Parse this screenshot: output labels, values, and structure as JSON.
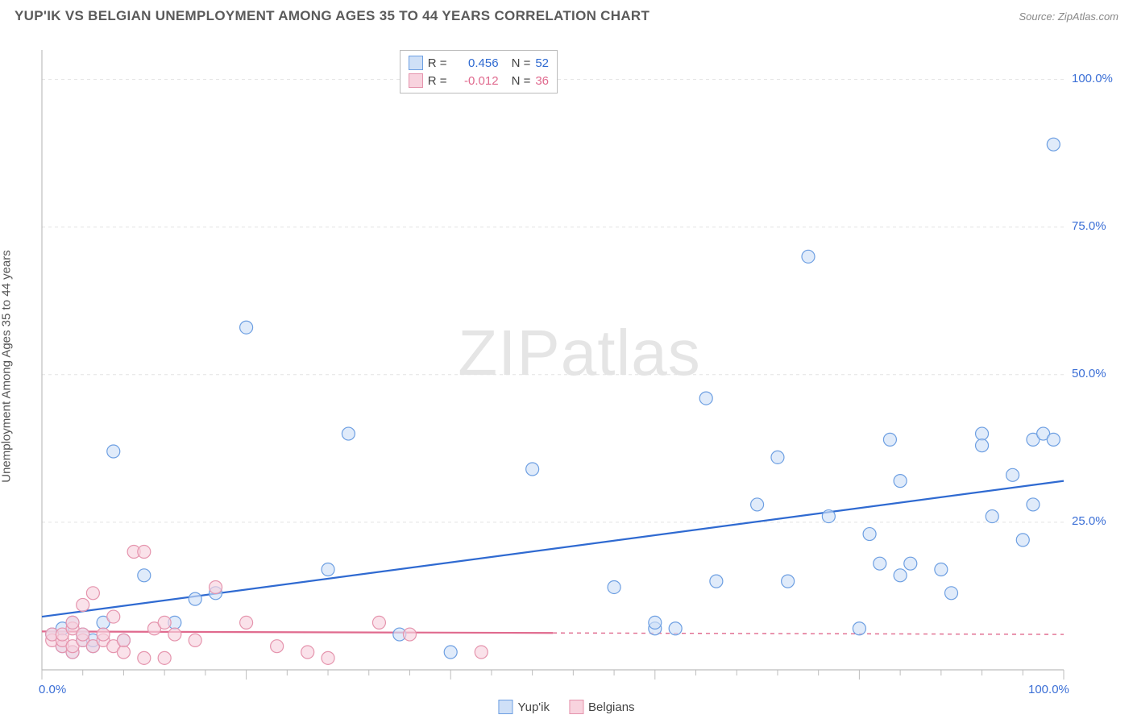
{
  "title": "YUP'IK VS BELGIAN UNEMPLOYMENT AMONG AGES 35 TO 44 YEARS CORRELATION CHART",
  "source": "Source: ZipAtlas.com",
  "y_axis_label": "Unemployment Among Ages 35 to 44 years",
  "watermark_a": "ZIP",
  "watermark_b": "atlas",
  "chart": {
    "type": "scatter",
    "xlim": [
      0,
      100
    ],
    "ylim": [
      0,
      105
    ],
    "x_ticks_major": [
      0,
      20,
      40,
      60,
      80,
      100
    ],
    "x_ticks_minor_step": 4,
    "y_grid": [
      25,
      50,
      75,
      100
    ],
    "x_labels": [
      {
        "v": 0,
        "t": "0.0%"
      },
      {
        "v": 100,
        "t": "100.0%"
      }
    ],
    "y_labels": [
      {
        "v": 25,
        "t": "25.0%"
      },
      {
        "v": 50,
        "t": "50.0%"
      },
      {
        "v": 75,
        "t": "75.0%"
      },
      {
        "v": 100,
        "t": "100.0%"
      }
    ],
    "background_color": "#ffffff",
    "grid_color": "#e3e3e3",
    "axis_color": "#bdbdbd",
    "marker_radius": 8,
    "marker_stroke_width": 1.2,
    "trend_line_width": 2.2,
    "axis_label_color": "#3b6fd6",
    "series": [
      {
        "name": "Yup'ik",
        "fill": "#cfe0f7",
        "stroke": "#6d9fe2",
        "line_stroke": "#2f6ad1",
        "r_label": "R =",
        "r_value": "0.456",
        "n_label": "N =",
        "n_value": "52",
        "trend": {
          "x1": 0,
          "y1": 9,
          "x2": 100,
          "y2": 32,
          "solid_until": 100
        },
        "points": [
          [
            1,
            6
          ],
          [
            2,
            4
          ],
          [
            2,
            7
          ],
          [
            3,
            3
          ],
          [
            3,
            8
          ],
          [
            4,
            5
          ],
          [
            4,
            6
          ],
          [
            5,
            4
          ],
          [
            5,
            5
          ],
          [
            6,
            8
          ],
          [
            7,
            37
          ],
          [
            8,
            5
          ],
          [
            10,
            16
          ],
          [
            13,
            8
          ],
          [
            15,
            12
          ],
          [
            17,
            13
          ],
          [
            20,
            58
          ],
          [
            28,
            17
          ],
          [
            30,
            40
          ],
          [
            35,
            6
          ],
          [
            40,
            3
          ],
          [
            48,
            34
          ],
          [
            56,
            14
          ],
          [
            60,
            7
          ],
          [
            60,
            8
          ],
          [
            62,
            7
          ],
          [
            65,
            46
          ],
          [
            66,
            15
          ],
          [
            70,
            28
          ],
          [
            72,
            36
          ],
          [
            73,
            15
          ],
          [
            75,
            70
          ],
          [
            77,
            26
          ],
          [
            80,
            7
          ],
          [
            81,
            23
          ],
          [
            82,
            18
          ],
          [
            83,
            39
          ],
          [
            84,
            16
          ],
          [
            84,
            32
          ],
          [
            85,
            18
          ],
          [
            88,
            17
          ],
          [
            89,
            13
          ],
          [
            92,
            40
          ],
          [
            92,
            38
          ],
          [
            93,
            26
          ],
          [
            95,
            33
          ],
          [
            96,
            22
          ],
          [
            97,
            39
          ],
          [
            97,
            28
          ],
          [
            98,
            40
          ],
          [
            99,
            89
          ],
          [
            99,
            39
          ]
        ]
      },
      {
        "name": "Belgians",
        "fill": "#f8d3de",
        "stroke": "#e594ad",
        "line_stroke": "#e06a8e",
        "r_label": "R =",
        "r_value": "-0.012",
        "n_label": "N =",
        "n_value": "36",
        "trend": {
          "x1": 0,
          "y1": 6.5,
          "x2": 100,
          "y2": 6,
          "solid_until": 50
        },
        "points": [
          [
            1,
            5
          ],
          [
            1,
            6
          ],
          [
            2,
            4
          ],
          [
            2,
            5
          ],
          [
            2,
            6
          ],
          [
            3,
            3
          ],
          [
            3,
            4
          ],
          [
            3,
            7
          ],
          [
            3,
            8
          ],
          [
            4,
            5
          ],
          [
            4,
            6
          ],
          [
            4,
            11
          ],
          [
            5,
            4
          ],
          [
            5,
            13
          ],
          [
            6,
            5
          ],
          [
            6,
            6
          ],
          [
            7,
            4
          ],
          [
            7,
            9
          ],
          [
            8,
            3
          ],
          [
            8,
            5
          ],
          [
            9,
            20
          ],
          [
            10,
            20
          ],
          [
            10,
            2
          ],
          [
            11,
            7
          ],
          [
            12,
            8
          ],
          [
            12,
            2
          ],
          [
            13,
            6
          ],
          [
            15,
            5
          ],
          [
            17,
            14
          ],
          [
            20,
            8
          ],
          [
            23,
            4
          ],
          [
            26,
            3
          ],
          [
            28,
            2
          ],
          [
            33,
            8
          ],
          [
            36,
            6
          ],
          [
            43,
            3
          ]
        ]
      }
    ],
    "legend": [
      {
        "label": "Yup'ik",
        "fill": "#cfe0f7",
        "stroke": "#6d9fe2"
      },
      {
        "label": "Belgians",
        "fill": "#f8d3de",
        "stroke": "#e594ad"
      }
    ]
  }
}
